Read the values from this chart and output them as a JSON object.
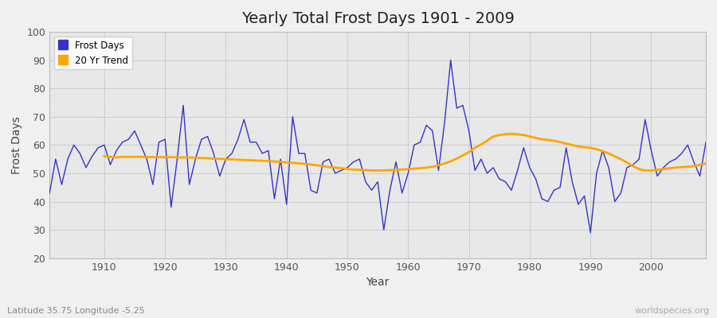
{
  "title": "Yearly Total Frost Days 1901 - 2009",
  "xlabel": "Year",
  "ylabel": "Frost Days",
  "subtitle_left": "Latitude 35.75 Longitude -5.25",
  "subtitle_right": "worldspecies.org",
  "ylim": [
    20,
    100
  ],
  "xlim": [
    1901,
    2009
  ],
  "line_color": "#3333cc",
  "trend_color": "#FFA500",
  "fig_bg_color": "#f0f0f0",
  "plot_bg_color": "#e8e8e8",
  "legend_entries": [
    "Frost Days",
    "20 Yr Trend"
  ],
  "years": [
    1901,
    1902,
    1903,
    1904,
    1905,
    1906,
    1907,
    1908,
    1909,
    1910,
    1911,
    1912,
    1913,
    1914,
    1915,
    1916,
    1917,
    1918,
    1919,
    1920,
    1921,
    1922,
    1923,
    1924,
    1925,
    1926,
    1927,
    1928,
    1929,
    1930,
    1931,
    1932,
    1933,
    1934,
    1935,
    1936,
    1937,
    1938,
    1939,
    1940,
    1941,
    1942,
    1943,
    1944,
    1945,
    1946,
    1947,
    1948,
    1949,
    1950,
    1951,
    1952,
    1953,
    1954,
    1955,
    1956,
    1957,
    1958,
    1959,
    1960,
    1961,
    1962,
    1963,
    1964,
    1965,
    1966,
    1967,
    1968,
    1969,
    1970,
    1971,
    1972,
    1973,
    1974,
    1975,
    1976,
    1977,
    1978,
    1979,
    1980,
    1981,
    1982,
    1983,
    1984,
    1985,
    1986,
    1987,
    1988,
    1989,
    1990,
    1991,
    1992,
    1993,
    1994,
    1995,
    1996,
    1997,
    1998,
    1999,
    2000,
    2001,
    2002,
    2003,
    2004,
    2005,
    2006,
    2007,
    2008,
    2009
  ],
  "frost_days": [
    43,
    55,
    46,
    55,
    60,
    57,
    52,
    56,
    59,
    60,
    53,
    58,
    61,
    62,
    65,
    60,
    55,
    46,
    61,
    62,
    38,
    55,
    74,
    46,
    55,
    62,
    63,
    57,
    49,
    55,
    57,
    62,
    69,
    61,
    61,
    57,
    58,
    41,
    55,
    39,
    70,
    57,
    57,
    44,
    43,
    54,
    55,
    50,
    51,
    52,
    54,
    55,
    47,
    44,
    47,
    30,
    44,
    54,
    43,
    50,
    60,
    61,
    67,
    65,
    51,
    68,
    90,
    73,
    74,
    65,
    51,
    55,
    50,
    52,
    48,
    47,
    44,
    51,
    59,
    52,
    48,
    41,
    40,
    44,
    45,
    59,
    47,
    39,
    42,
    29,
    50,
    58,
    52,
    40,
    43,
    52,
    53,
    55,
    69,
    58,
    49,
    52,
    54,
    55,
    57,
    60,
    54,
    49,
    61
  ],
  "trend_years": [
    1910,
    1911,
    1912,
    1913,
    1914,
    1915,
    1916,
    1917,
    1918,
    1919,
    1920,
    1921,
    1922,
    1923,
    1924,
    1925,
    1926,
    1927,
    1928,
    1929,
    1930,
    1931,
    1932,
    1933,
    1934,
    1935,
    1936,
    1937,
    1938,
    1939,
    1940,
    1941,
    1942,
    1943,
    1944,
    1945,
    1946,
    1947,
    1948,
    1949,
    1950,
    1951,
    1952,
    1953,
    1954,
    1955,
    1956,
    1957,
    1958,
    1959,
    1960,
    1961,
    1962,
    1963,
    1964,
    1965,
    1966,
    1967,
    1968,
    1969,
    1970,
    1971,
    1972,
    1973,
    1974,
    1975,
    1976,
    1977,
    1978,
    1979,
    1980,
    1981,
    1982,
    1983,
    1984,
    1985,
    1986,
    1987,
    1988,
    1989,
    1990,
    1991,
    1992,
    1993,
    1994,
    1995,
    1996,
    1997,
    1998,
    1999,
    2000,
    2001,
    2002,
    2003,
    2004,
    2005,
    2006,
    2007,
    2008,
    2009
  ],
  "trend_values": [
    56.0,
    55.8,
    55.6,
    55.8,
    55.8,
    55.8,
    55.8,
    55.7,
    55.7,
    55.7,
    55.7,
    55.7,
    55.6,
    55.6,
    55.6,
    55.5,
    55.4,
    55.3,
    55.2,
    55.1,
    55.0,
    54.9,
    54.8,
    54.7,
    54.6,
    54.5,
    54.4,
    54.3,
    54.2,
    54.0,
    53.8,
    53.7,
    53.5,
    53.3,
    53.1,
    52.8,
    52.5,
    52.2,
    52.0,
    51.8,
    51.5,
    51.3,
    51.2,
    51.1,
    51.0,
    51.0,
    51.0,
    51.1,
    51.2,
    51.3,
    51.5,
    51.6,
    51.8,
    52.0,
    52.3,
    52.8,
    53.5,
    54.2,
    55.2,
    56.3,
    57.5,
    59.0,
    60.2,
    61.5,
    63.0,
    63.5,
    63.8,
    64.0,
    63.8,
    63.5,
    63.0,
    62.5,
    62.0,
    61.8,
    61.5,
    61.0,
    60.5,
    60.0,
    59.5,
    59.2,
    59.0,
    58.5,
    57.8,
    57.0,
    56.0,
    55.0,
    53.8,
    52.5,
    51.5,
    51.0,
    51.0,
    51.2,
    51.5,
    51.8,
    52.0,
    52.2,
    52.3,
    52.5,
    53.0,
    53.5
  ]
}
